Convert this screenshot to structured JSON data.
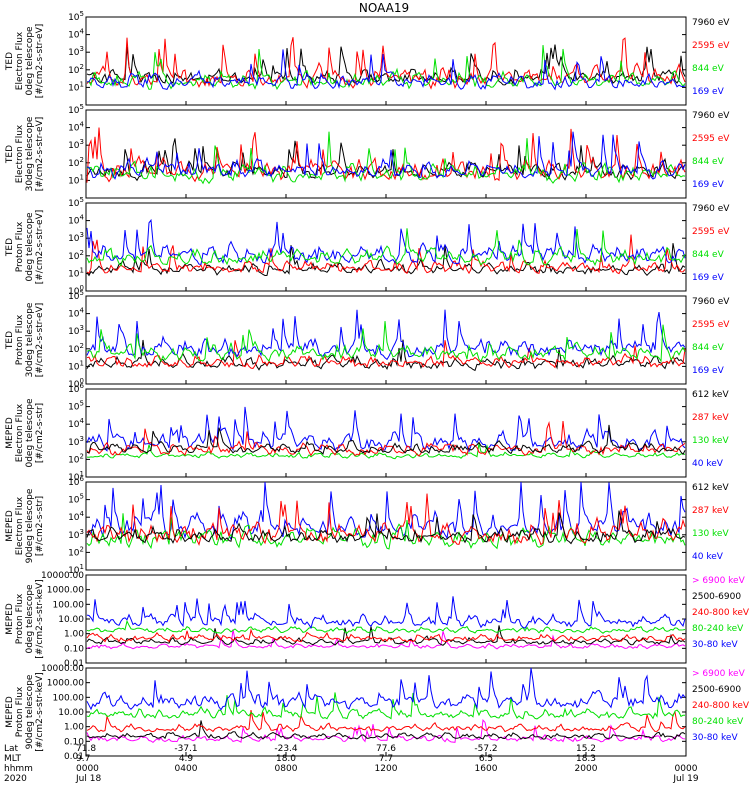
{
  "title": "NOAA19",
  "colors": {
    "black": "#000000",
    "red": "#ff0000",
    "green": "#00e000",
    "blue": "#0000ff",
    "magenta": "#ff00ff"
  },
  "chart_data": [
    {
      "type": "line",
      "ylabel": [
        "TED",
        "Electron Flux",
        "0deg telescope",
        "[#/cm2-s-str-eV]"
      ],
      "ytick_labels": [
        "10^1",
        "10^2",
        "10^3",
        "10^4",
        "10^5"
      ],
      "ylim_log10": [
        0,
        5
      ],
      "yscale": "log",
      "series": [
        {
          "name": "7960 eV",
          "color": "#000000",
          "base": 1.3,
          "spread": 1.0,
          "spikes": 0.05,
          "seed": 11
        },
        {
          "name": "2595 eV",
          "color": "#ff0000",
          "base": 1.1,
          "spread": 1.3,
          "spikes": 0.08,
          "seed": 12
        },
        {
          "name": "844 eV",
          "color": "#00e000",
          "base": 1.0,
          "spread": 1.1,
          "spikes": 0.03,
          "seed": 13
        },
        {
          "name": "169 eV",
          "color": "#0000ff",
          "base": 1.0,
          "spread": 1.0,
          "spikes": 0.03,
          "seed": 14
        }
      ]
    },
    {
      "type": "line",
      "ylabel": [
        "TED",
        "Electron Flux",
        "30deg telescope",
        "[#/cm2-s-str-eV]"
      ],
      "ytick_labels": [
        "10^1",
        "10^2",
        "10^3",
        "10^4",
        "10^5"
      ],
      "ylim_log10": [
        0,
        5
      ],
      "yscale": "log",
      "series": [
        {
          "name": "7960 eV",
          "color": "#000000",
          "base": 1.2,
          "spread": 1.0,
          "spikes": 0.05,
          "seed": 21
        },
        {
          "name": "2595 eV",
          "color": "#ff0000",
          "base": 1.1,
          "spread": 1.4,
          "spikes": 0.08,
          "seed": 22
        },
        {
          "name": "844 eV",
          "color": "#00e000",
          "base": 1.0,
          "spread": 1.2,
          "spikes": 0.03,
          "seed": 23
        },
        {
          "name": "169 eV",
          "color": "#0000ff",
          "base": 1.2,
          "spread": 1.2,
          "spikes": 0.04,
          "seed": 24
        }
      ]
    },
    {
      "type": "line",
      "ylabel": [
        "TED",
        "Proton Flux",
        "0deg telescope",
        "[#/cm2-s-str-eV]"
      ],
      "ytick_labels": [
        "10^0",
        "10^1",
        "10^2",
        "10^3",
        "10^4",
        "10^5"
      ],
      "ylim_log10": [
        0,
        5
      ],
      "yscale": "log",
      "series": [
        {
          "name": "7960 eV",
          "color": "#000000",
          "base": 1.0,
          "spread": 0.8,
          "spikes": 0.02,
          "seed": 31
        },
        {
          "name": "2595 eV",
          "color": "#ff0000",
          "base": 1.1,
          "spread": 0.8,
          "spikes": 0.02,
          "seed": 32
        },
        {
          "name": "169 eV",
          "color": "#0000ff",
          "base": 1.7,
          "spread": 1.2,
          "spikes": 0.05,
          "seed": 34
        },
        {
          "name": "844 eV",
          "color": "#00e000",
          "base": 1.6,
          "spread": 1.0,
          "spikes": 0.02,
          "seed": 33
        }
      ]
    },
    {
      "type": "line",
      "ylabel": [
        "TED",
        "Proton Flux",
        "30deg telescope",
        "[#/cm2-s-str-eV]"
      ],
      "ytick_labels": [
        "10^0",
        "10^1",
        "10^2",
        "10^3",
        "10^4",
        "10^5"
      ],
      "ylim_log10": [
        0,
        5
      ],
      "yscale": "log",
      "series": [
        {
          "name": "7960 eV",
          "color": "#000000",
          "base": 0.9,
          "spread": 0.8,
          "spikes": 0.02,
          "seed": 41
        },
        {
          "name": "2595 eV",
          "color": "#ff0000",
          "base": 1.0,
          "spread": 0.8,
          "spikes": 0.02,
          "seed": 42
        },
        {
          "name": "169 eV",
          "color": "#0000ff",
          "base": 1.6,
          "spread": 1.3,
          "spikes": 0.05,
          "seed": 44
        },
        {
          "name": "844 eV",
          "color": "#00e000",
          "base": 1.4,
          "spread": 1.1,
          "spikes": 0.02,
          "seed": 43
        }
      ]
    },
    {
      "type": "line",
      "ylabel": [
        "MEPED",
        "Electron Flux",
        "0deg telescope",
        "[#/cm2-s-str]"
      ],
      "ytick_labels": [
        "10^1",
        "10^2",
        "10^3",
        "10^4",
        "10^5",
        "10^6"
      ],
      "ylim_log10": [
        1,
        6
      ],
      "yscale": "log",
      "series": [
        {
          "name": "40 keV",
          "color": "#0000ff",
          "base": 2.6,
          "spread": 1.2,
          "spikes": 0.06,
          "seed": 54
        },
        {
          "name": "130 keV",
          "color": "#00e000",
          "base": 2.1,
          "spread": 0.4,
          "spikes": 0.01,
          "seed": 53
        },
        {
          "name": "287 keV",
          "color": "#ff0000",
          "base": 2.3,
          "spread": 0.8,
          "spikes": 0.03,
          "seed": 52
        },
        {
          "name": "612 keV",
          "color": "#000000",
          "base": 2.4,
          "spread": 0.7,
          "spikes": 0.02,
          "seed": 51
        }
      ]
    },
    {
      "type": "line",
      "ylabel": [
        "MEPED",
        "Electron Flux",
        "90deg telescope",
        "[#/cm2-s-str]"
      ],
      "ytick_labels": [
        "10^1",
        "10^2",
        "10^3",
        "10^4",
        "10^5",
        "10^6"
      ],
      "ylim_log10": [
        1,
        6
      ],
      "yscale": "log",
      "series": [
        {
          "name": "40 keV",
          "color": "#0000ff",
          "base": 3.0,
          "spread": 1.6,
          "spikes": 0.06,
          "seed": 64
        },
        {
          "name": "130 keV",
          "color": "#00e000",
          "base": 2.4,
          "spread": 1.2,
          "spikes": 0.02,
          "seed": 63
        },
        {
          "name": "287 keV",
          "color": "#ff0000",
          "base": 2.6,
          "spread": 1.4,
          "spikes": 0.03,
          "seed": 62
        },
        {
          "name": "612 keV",
          "color": "#000000",
          "base": 2.6,
          "spread": 1.0,
          "spikes": 0.02,
          "seed": 61
        }
      ]
    },
    {
      "type": "line",
      "ylabel": [
        "MEPED",
        "Proton Flux",
        "0deg telescope",
        "[#/cm2-s-str-keV]"
      ],
      "ytick_labels": [
        "0.01",
        "0.10",
        "1.00",
        "10.00",
        "100.00",
        "1000.00",
        "10000.00"
      ],
      "ylim_log10": [
        -2,
        4
      ],
      "yscale": "log",
      "series": [
        {
          "name": "> 6900 keV",
          "color": "#ff00ff",
          "base": -1.0,
          "spread": 0.4,
          "spikes": 0.03,
          "seed": 75
        },
        {
          "name": "2500-6900",
          "color": "#000000",
          "base": -0.7,
          "spread": 0.5,
          "spikes": 0.02,
          "seed": 74
        },
        {
          "name": "240-800 keV",
          "color": "#ff0000",
          "base": -0.5,
          "spread": 0.6,
          "spikes": 0.02,
          "seed": 73
        },
        {
          "name": "80-240 keV",
          "color": "#00e000",
          "base": 0.1,
          "spread": 0.5,
          "spikes": 0.02,
          "seed": 72
        },
        {
          "name": "30-80 keV",
          "color": "#0000ff",
          "base": 0.5,
          "spread": 1.0,
          "spikes": 0.05,
          "seed": 71
        }
      ]
    },
    {
      "type": "line",
      "ylabel": [
        "MEPED",
        "Proton Flux",
        "90deg telescope",
        "[#/cm2-s-str-keV]"
      ],
      "ytick_labels": [
        "0.01",
        "0.10",
        "1.00",
        "10.00",
        "100.00",
        "1000.00",
        "10000.00"
      ],
      "ylim_log10": [
        -2,
        4
      ],
      "yscale": "log",
      "series": [
        {
          "name": "> 6900 keV",
          "color": "#ff00ff",
          "base": -1.0,
          "spread": 0.5,
          "spikes": 0.03,
          "seed": 85
        },
        {
          "name": "2500-6900",
          "color": "#000000",
          "base": -0.8,
          "spread": 0.5,
          "spikes": 0.02,
          "seed": 84
        },
        {
          "name": "240-800 keV",
          "color": "#ff0000",
          "base": -0.3,
          "spread": 0.6,
          "spikes": 0.02,
          "seed": 83
        },
        {
          "name": "80-240 keV",
          "color": "#00e000",
          "base": 0.6,
          "spread": 0.8,
          "spikes": 0.03,
          "seed": 82
        },
        {
          "name": "30-80 keV",
          "color": "#0000ff",
          "base": 1.3,
          "spread": 1.3,
          "spikes": 0.05,
          "seed": 81
        }
      ]
    }
  ],
  "xaxis": {
    "row_labels": [
      "Lat",
      "MLT",
      "hhmm",
      "2020"
    ],
    "ticks": [
      {
        "lat": "71.8",
        "mlt": "9.7",
        "hhmm": "0000",
        "date": "Jul 18"
      },
      {
        "lat": "-37.1",
        "mlt": "4.9",
        "hhmm": "0400",
        "date": ""
      },
      {
        "lat": "-23.4",
        "mlt": "18.0",
        "hhmm": "0800",
        "date": ""
      },
      {
        "lat": "77.6",
        "mlt": "7.7",
        "hhmm": "1200",
        "date": ""
      },
      {
        "lat": "-57.2",
        "mlt": "6.5",
        "hhmm": "1600",
        "date": ""
      },
      {
        "lat": "15.2",
        "mlt": "18.3",
        "hhmm": "2000",
        "date": ""
      },
      {
        "lat": "",
        "mlt": "",
        "hhmm": "0000",
        "date": "Jul 19"
      }
    ]
  }
}
